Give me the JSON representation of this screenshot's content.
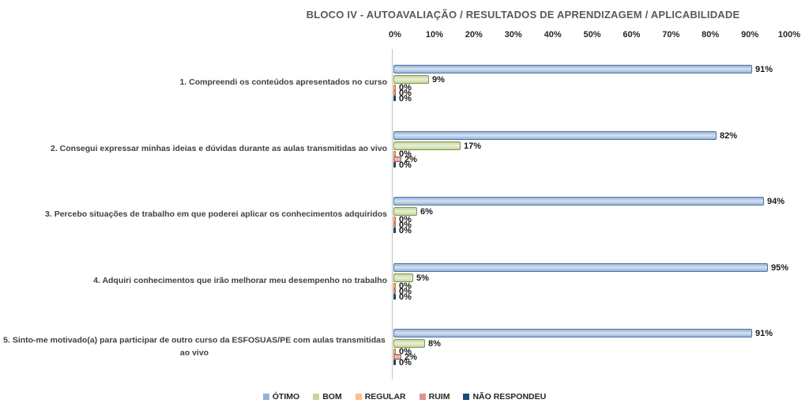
{
  "title": "BLOCO IV - AUTOAVALIAÇÃO / RESULTADOS DE APRENDIZAGEM / APLICABILIDADE",
  "chart_data": {
    "type": "bar",
    "orientation": "horizontal",
    "title": "BLOCO IV - AUTOAVALIAÇÃO / RESULTADOS DE APRENDIZAGEM / APLICABILIDADE",
    "categories": [
      "1. Compreendi os conteúdos apresentados no curso",
      "2. Consegui expressar minhas ideias e dúvidas durante as aulas transmitidas ao vivo",
      "3. Percebo situações de trabalho em que poderei aplicar os conhecimentos adquiridos",
      "4. Adquiri conhecimentos que irão melhorar meu desempenho no trabalho",
      "5. Sinto-me motivado(a) para participar de outro curso da ESFOSUAS/PE com aulas transmitidas ao vivo"
    ],
    "series": [
      {
        "name": "ÓTIMO",
        "values": [
          91,
          82,
          94,
          95,
          91
        ],
        "fill": "#95B3D7",
        "light": "#D6E2F2",
        "border": "#4E75A8"
      },
      {
        "name": "BOM",
        "values": [
          9,
          17,
          6,
          5,
          8
        ],
        "fill": "#C3D69B",
        "light": "#EAF0D9",
        "border": "#7E9450"
      },
      {
        "name": "REGULAR",
        "values": [
          0,
          0,
          0,
          0,
          0
        ],
        "fill": "#FAC08F",
        "light": "#FDDCBC",
        "border": "#C96F1C"
      },
      {
        "name": "RUIM",
        "values": [
          0,
          2,
          0,
          0,
          2
        ],
        "fill": "#D99694",
        "light": "#EDC4C3",
        "border": "#A65D5A"
      },
      {
        "name": "NÃO RESPONDEU",
        "values": [
          0,
          0,
          0,
          0,
          0
        ],
        "fill": "#1F497D",
        "light": "#31608F",
        "border": "#16365C"
      }
    ],
    "x_ticks": [
      "0%",
      "10%",
      "20%",
      "30%",
      "40%",
      "50%",
      "60%",
      "70%",
      "80%",
      "90%",
      "100%"
    ],
    "xlim": [
      0,
      100
    ],
    "value_suffix": "%",
    "data_labels": true,
    "grid": false,
    "legend_position": "bottom"
  }
}
